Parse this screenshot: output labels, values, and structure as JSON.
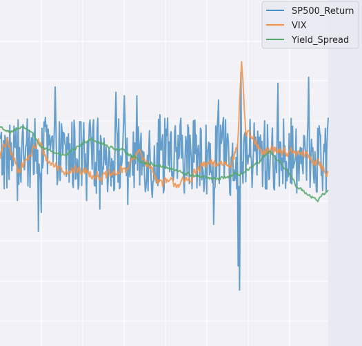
{
  "chart_data": {
    "type": "line",
    "title": "",
    "xlabel": "",
    "ylabel": "",
    "grid": true,
    "legend_position": "top-right",
    "x_range": [
      0,
      470
    ],
    "y_range": [
      -2.5,
      2.5
    ],
    "series": [
      {
        "name": "SP500_Return",
        "color": "#4c8fc3",
        "noise": 0.55,
        "spikes": [
          [
            55,
            -0.9
          ],
          [
            65,
            0.75
          ],
          [
            306,
            -0.8
          ],
          [
            341,
            -1.4
          ],
          [
            343,
            -1.75
          ],
          [
            345,
            1.4
          ],
          [
            350,
            0.5
          ]
        ]
      },
      {
        "name": "VIX",
        "color": "#f0924a",
        "noise": 0.12,
        "anchors": [
          [
            0,
            0.2
          ],
          [
            10,
            0.4
          ],
          [
            25,
            0.0
          ],
          [
            40,
            0.15
          ],
          [
            55,
            0.4
          ],
          [
            70,
            0.1
          ],
          [
            90,
            0.0
          ],
          [
            130,
            -0.05
          ],
          [
            150,
            -0.12
          ],
          [
            180,
            0.0
          ],
          [
            200,
            0.25
          ],
          [
            230,
            -0.2
          ],
          [
            265,
            -0.2
          ],
          [
            290,
            0.05
          ],
          [
            330,
            0.1
          ],
          [
            340,
            0.3
          ],
          [
            346,
            1.6
          ],
          [
            352,
            0.5
          ],
          [
            365,
            0.4
          ],
          [
            375,
            0.2
          ],
          [
            390,
            0.3
          ],
          [
            410,
            0.25
          ],
          [
            440,
            0.2
          ],
          [
            470,
            -0.05
          ]
        ]
      },
      {
        "name": "Yield_Spread",
        "color": "#55a868",
        "noise": 0.04,
        "anchors": [
          [
            0,
            0.62
          ],
          [
            15,
            0.52
          ],
          [
            30,
            0.62
          ],
          [
            45,
            0.55
          ],
          [
            60,
            0.3
          ],
          [
            75,
            0.25
          ],
          [
            95,
            0.2
          ],
          [
            115,
            0.35
          ],
          [
            130,
            0.45
          ],
          [
            150,
            0.35
          ],
          [
            180,
            0.25
          ],
          [
            205,
            0.1
          ],
          [
            230,
            0.05
          ],
          [
            260,
            -0.05
          ],
          [
            290,
            -0.12
          ],
          [
            310,
            -0.15
          ],
          [
            330,
            -0.1
          ],
          [
            350,
            -0.05
          ],
          [
            365,
            0.05
          ],
          [
            375,
            0.15
          ],
          [
            385,
            0.25
          ],
          [
            395,
            0.15
          ],
          [
            410,
            0.0
          ],
          [
            425,
            -0.25
          ],
          [
            440,
            -0.35
          ],
          [
            455,
            -0.45
          ],
          [
            470,
            -0.3
          ]
        ]
      }
    ]
  }
}
